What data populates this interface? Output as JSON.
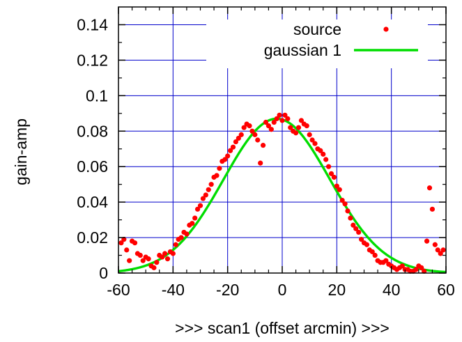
{
  "chart_data": {
    "type": "scatter",
    "xlabel": ">>> scan1 (offset arcmin) >>>",
    "ylabel": "gain-amp",
    "xlim": [
      -60,
      60
    ],
    "ylim": [
      0,
      0.15
    ],
    "xticks": [
      -60,
      -40,
      -20,
      0,
      20,
      40,
      60
    ],
    "xtick_labels": [
      "-60",
      "-40",
      "-20",
      "0",
      "20",
      "40",
      "60"
    ],
    "yticks": [
      0,
      0.02,
      0.04,
      0.06,
      0.08,
      0.1,
      0.12,
      0.14
    ],
    "ytick_labels": [
      "0",
      "0.02",
      "0.04",
      "0.06",
      "0.08",
      "0.1",
      "0.12",
      "0.14"
    ],
    "grid": true,
    "legend_position": "top-right",
    "colors": {
      "grid": "#0000cc",
      "source": "#ff0000",
      "fit": "#00dd00"
    },
    "series": [
      {
        "name": "source",
        "kind": "points",
        "x": [
          -59,
          -58,
          -57,
          -56,
          -55,
          -54,
          -53,
          -52,
          -51,
          -50,
          -49,
          -48,
          -47,
          -46,
          -45,
          -44,
          -43,
          -42,
          -41,
          -40,
          -39,
          -38,
          -37,
          -36,
          -35,
          -34,
          -33,
          -32,
          -31,
          -30,
          -29,
          -28,
          -27,
          -26,
          -25,
          -24,
          -23,
          -22,
          -21,
          -20,
          -19,
          -18,
          -17,
          -16,
          -15,
          -14,
          -13,
          -12,
          -11,
          -10,
          -9,
          -8,
          -7,
          -6,
          -5,
          -4,
          -3,
          -2,
          -1,
          0,
          1,
          2,
          3,
          4,
          5,
          6,
          7,
          8,
          9,
          10,
          11,
          12,
          13,
          14,
          15,
          16,
          17,
          18,
          19,
          20,
          21,
          22,
          23,
          24,
          25,
          26,
          27,
          28,
          29,
          30,
          31,
          32,
          33,
          34,
          35,
          36,
          37,
          38,
          39,
          40,
          41,
          42,
          43,
          44,
          45,
          46,
          47,
          48,
          49,
          50,
          51,
          52,
          53,
          54,
          55,
          56,
          57,
          58,
          59
        ],
        "y": [
          0.017,
          0.019,
          0.013,
          0.007,
          0.018,
          0.017,
          0.011,
          0.01,
          0.007,
          0.009,
          0.008,
          0.004,
          0.003,
          0.006,
          0.01,
          0.009,
          0.011,
          0.008,
          0.012,
          0.011,
          0.016,
          0.019,
          0.02,
          0.023,
          0.022,
          0.027,
          0.028,
          0.031,
          0.036,
          0.038,
          0.042,
          0.044,
          0.047,
          0.05,
          0.054,
          0.055,
          0.059,
          0.063,
          0.064,
          0.066,
          0.069,
          0.071,
          0.074,
          0.076,
          0.078,
          0.082,
          0.084,
          0.083,
          0.08,
          0.078,
          0.075,
          0.062,
          0.072,
          0.085,
          0.083,
          0.081,
          0.085,
          0.087,
          0.089,
          0.086,
          0.089,
          0.087,
          0.082,
          0.08,
          0.079,
          0.082,
          0.086,
          0.084,
          0.083,
          0.078,
          0.075,
          0.073,
          0.07,
          0.069,
          0.067,
          0.064,
          0.06,
          0.056,
          0.054,
          0.049,
          0.047,
          0.041,
          0.039,
          0.035,
          0.031,
          0.027,
          0.025,
          0.023,
          0.019,
          0.017,
          0.016,
          0.013,
          0.012,
          0.01,
          0.007,
          0.006,
          0.006,
          0.007,
          0.005,
          0.004,
          0.003,
          0.002,
          0.003,
          0.004,
          0.002,
          0.002,
          0.001,
          0.001,
          0.002,
          0.004,
          0.003,
          0.001,
          0.018,
          0.048,
          0.036,
          0.016,
          0.013,
          0.011,
          0.013
        ]
      },
      {
        "name": "gaussian 1",
        "kind": "line",
        "amplitude": 0.087,
        "center": -2,
        "sigma": 19.5
      }
    ]
  }
}
